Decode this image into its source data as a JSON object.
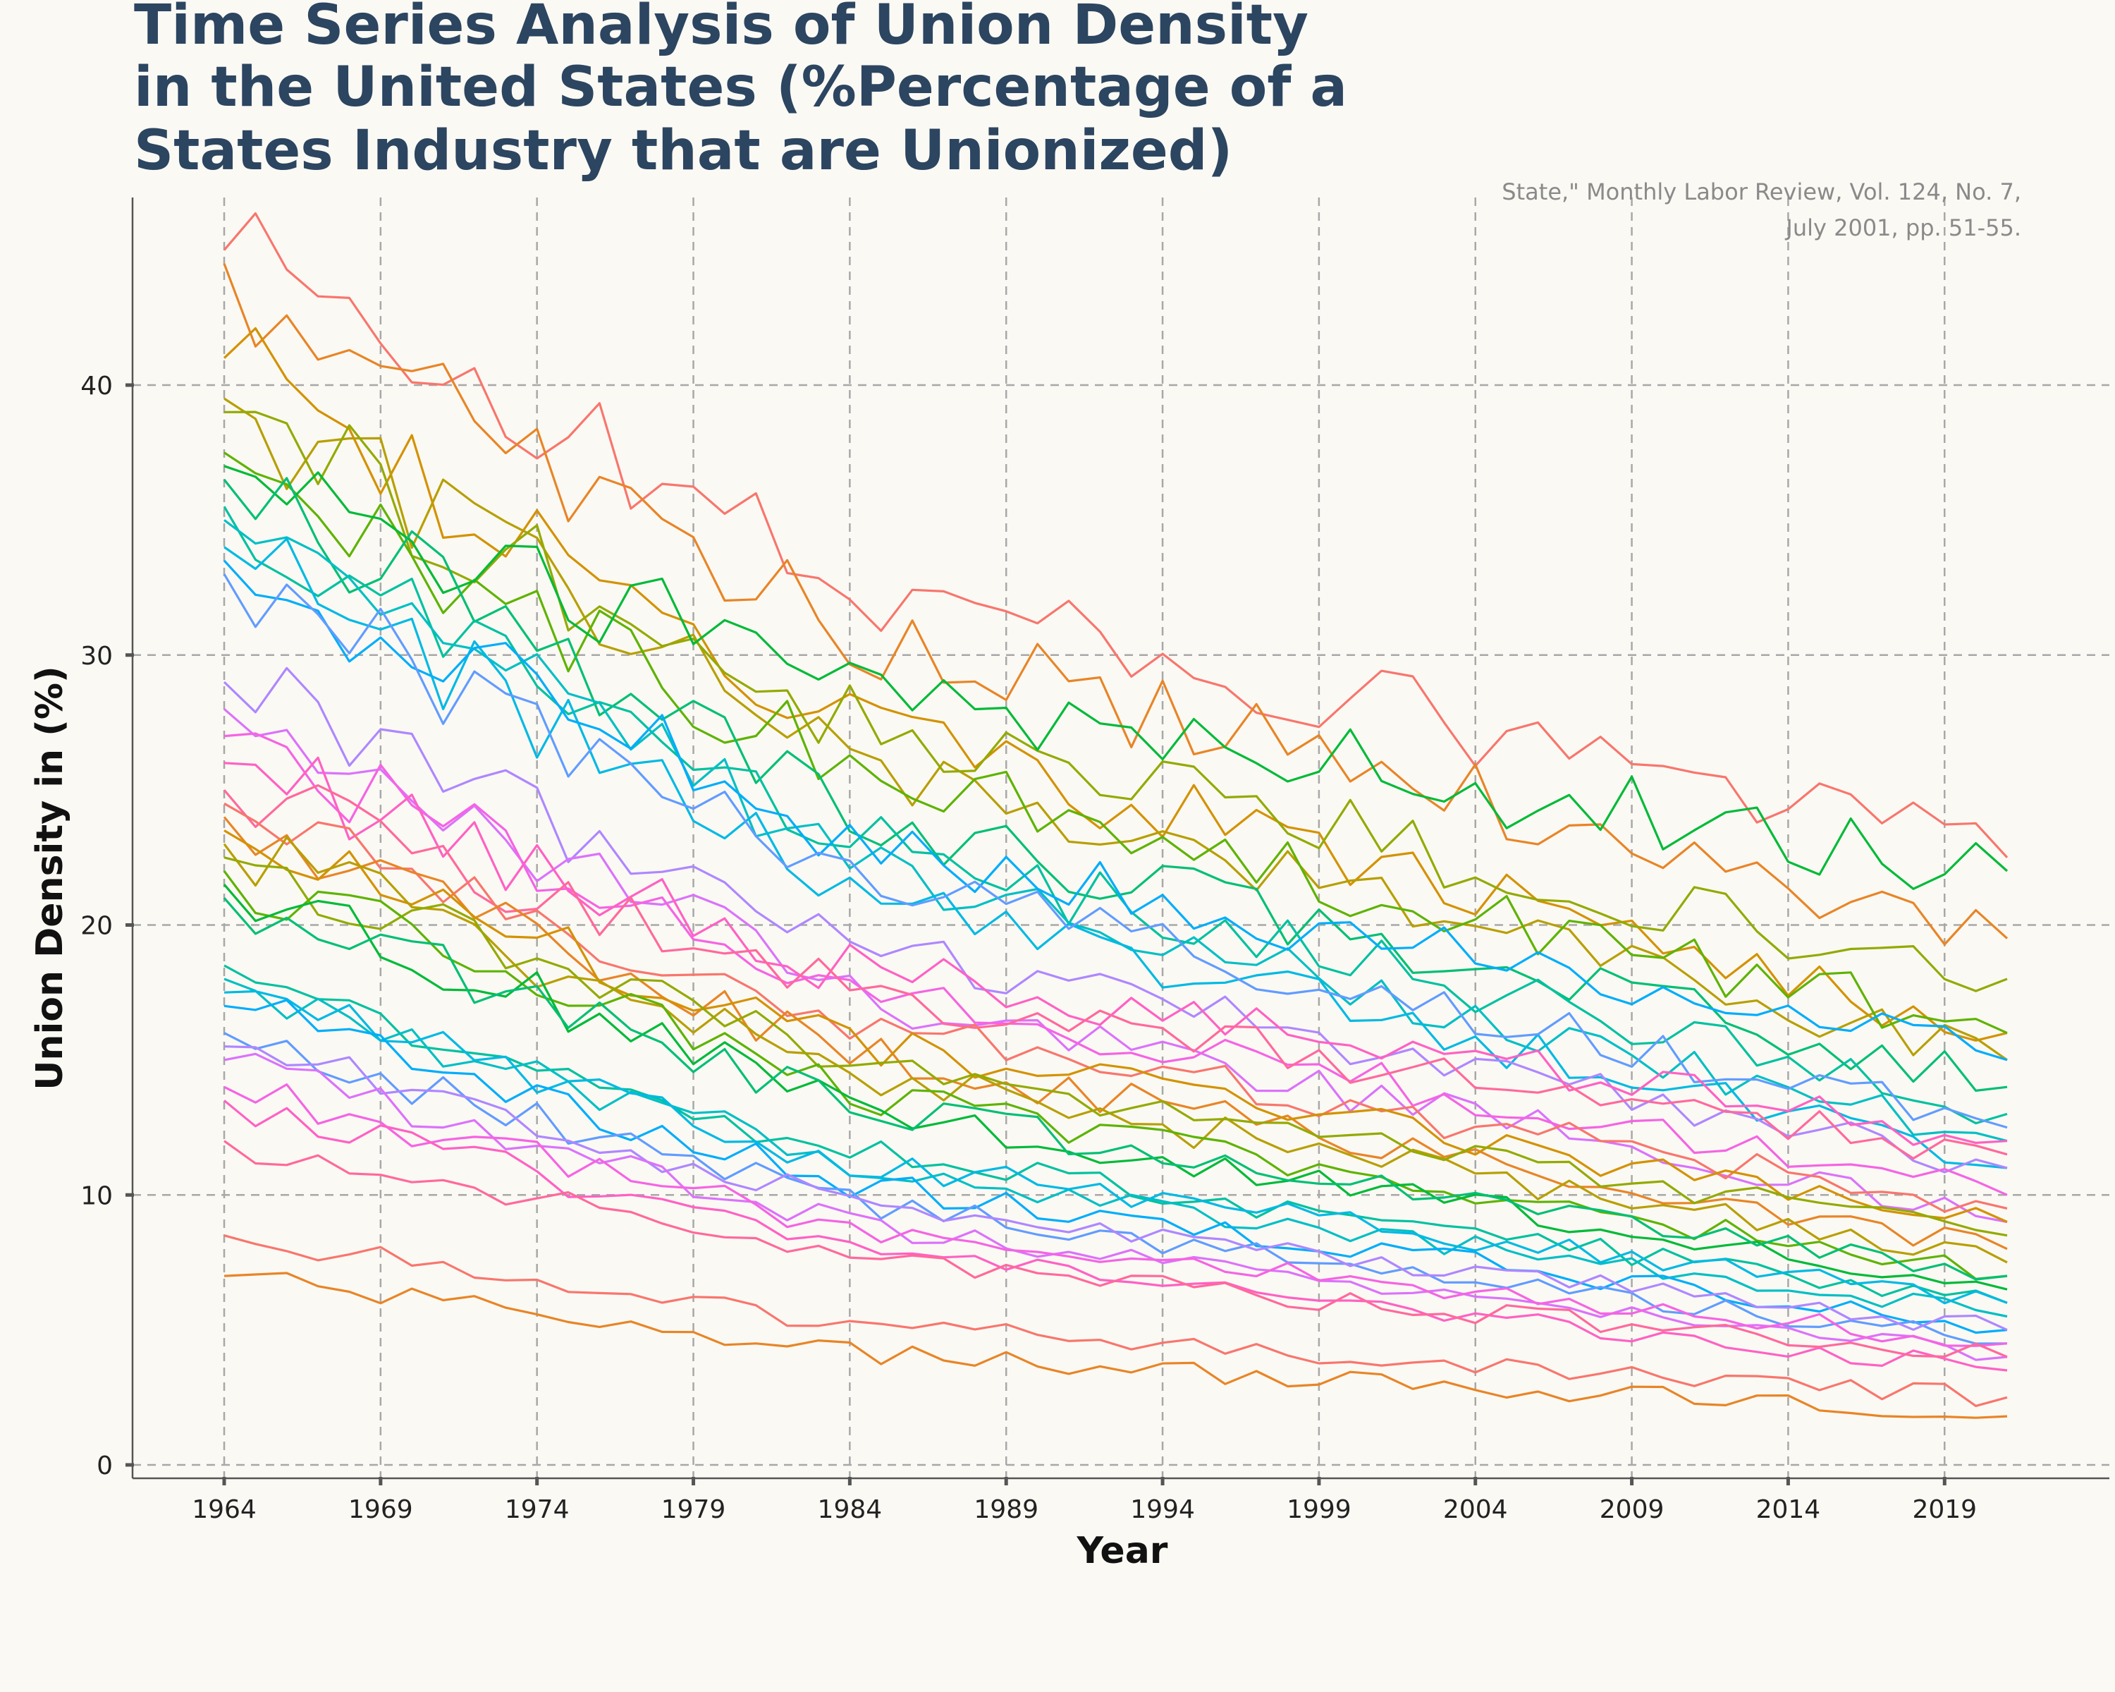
{
  "chart_data": {
    "type": "line",
    "title_lines": [
      "Time Series Analysis of Union Density",
      "in the United States (%Percentage of a",
      "States Industry that are Unionized)"
    ],
    "xlabel": "Year",
    "ylabel": "Union Density in (%)",
    "caption_lines": [
      "State,\" Monthly Labor Review, Vol. 124, No. 7,",
      "July 2001, pp. 51-55."
    ],
    "xlim": [
      1964,
      2021
    ],
    "ylim": [
      0,
      45
    ],
    "x_ticks": [
      1964,
      1969,
      1974,
      1979,
      1984,
      1989,
      1994,
      1999,
      2004,
      2009,
      2014,
      2019
    ],
    "y_ticks": [
      0,
      10,
      20,
      30,
      40
    ],
    "grid": true,
    "legend": "none",
    "palette": [
      "#f8766d",
      "#e88526",
      "#d39200",
      "#b79f00",
      "#93aa00",
      "#5eb300",
      "#00ba38",
      "#00bf74",
      "#00c19f",
      "#00bfc4",
      "#00b9e3",
      "#00adfa",
      "#619cff",
      "#ae87ff",
      "#db72fb",
      "#f564e3",
      "#ff61c3",
      "#ff699c"
    ],
    "series": [
      {
        "start": 45.0,
        "end": 22.5
      },
      {
        "start": 44.5,
        "end": 19.5
      },
      {
        "start": 41.0,
        "end": 16.0
      },
      {
        "start": 39.5,
        "end": 15.0
      },
      {
        "start": 39.0,
        "end": 18.0
      },
      {
        "start": 37.5,
        "end": 16.0
      },
      {
        "start": 37.0,
        "end": 22.0
      },
      {
        "start": 36.5,
        "end": 14.0
      },
      {
        "start": 35.5,
        "end": 13.0
      },
      {
        "start": 35.0,
        "end": 12.0
      },
      {
        "start": 34.0,
        "end": 11.0
      },
      {
        "start": 33.5,
        "end": 15.0
      },
      {
        "start": 33.0,
        "end": 12.5
      },
      {
        "start": 29.0,
        "end": 11.0
      },
      {
        "start": 28.0,
        "end": 9.0
      },
      {
        "start": 27.0,
        "end": 10.0
      },
      {
        "start": 26.0,
        "end": 12.0
      },
      {
        "start": 25.0,
        "end": 11.5
      },
      {
        "start": 24.5,
        "end": 9.5
      },
      {
        "start": 24.0,
        "end": 8.0
      },
      {
        "start": 23.5,
        "end": 9.0
      },
      {
        "start": 23.0,
        "end": 7.5
      },
      {
        "start": 22.5,
        "end": 8.5
      },
      {
        "start": 22.0,
        "end": 7.0
      },
      {
        "start": 21.5,
        "end": 6.5
      },
      {
        "start": 21.0,
        "end": 7.0
      },
      {
        "start": 18.5,
        "end": 6.0
      },
      {
        "start": 18.0,
        "end": 5.5
      },
      {
        "start": 17.5,
        "end": 6.0
      },
      {
        "start": 17.0,
        "end": 5.0
      },
      {
        "start": 16.0,
        "end": 4.5
      },
      {
        "start": 15.5,
        "end": 5.0
      },
      {
        "start": 15.0,
        "end": 4.0
      },
      {
        "start": 14.0,
        "end": 4.5
      },
      {
        "start": 13.5,
        "end": 3.5
      },
      {
        "start": 12.0,
        "end": 4.0
      },
      {
        "start": 8.5,
        "end": 2.5
      },
      {
        "start": 7.0,
        "end": 1.8
      }
    ]
  }
}
